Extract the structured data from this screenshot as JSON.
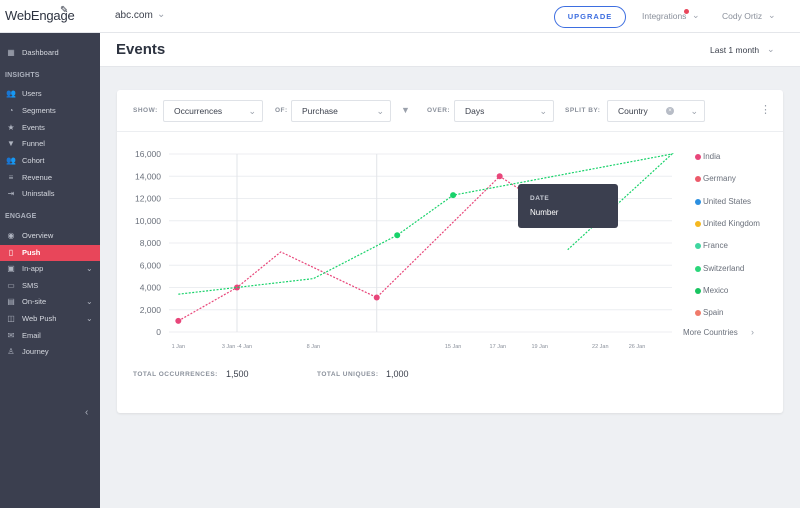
{
  "topbar": {
    "logo": "WebEngage",
    "account": "abc.com",
    "upgrade": "UPGRADE",
    "integrations": "Integrations",
    "user": "Cody Ortiz"
  },
  "sidebar": {
    "items": [
      {
        "label": "Dashboard",
        "icon": "grid-icon"
      },
      {
        "label": "Users",
        "icon": "users-icon"
      },
      {
        "label": "Segments",
        "icon": "pie-icon"
      },
      {
        "label": "Events",
        "icon": "star-icon"
      },
      {
        "label": "Funnel",
        "icon": "funnel-icon"
      },
      {
        "label": "Cohort",
        "icon": "cohort-icon"
      },
      {
        "label": "Revenue",
        "icon": "coins-icon"
      },
      {
        "label": "Uninstalls",
        "icon": "uninstall-icon"
      },
      {
        "label": "Overview",
        "icon": "eye-icon"
      },
      {
        "label": "Push",
        "icon": "phone-icon"
      },
      {
        "label": "In-app",
        "icon": "inapp-icon"
      },
      {
        "label": "SMS",
        "icon": "sms-icon"
      },
      {
        "label": "On-site",
        "icon": "onsite-icon"
      },
      {
        "label": "Web Push",
        "icon": "webpush-icon"
      },
      {
        "label": "Email",
        "icon": "email-icon"
      },
      {
        "label": "Journey",
        "icon": "journey-icon"
      }
    ],
    "sections": {
      "insights": "INSIGHTS",
      "engage": "ENGAGE"
    },
    "active_color": "#e8465a"
  },
  "page": {
    "title": "Events",
    "range": "Last 1 month"
  },
  "filters": {
    "show_label": "SHOW:",
    "show_value": "Occurrences",
    "of_label": "OF:",
    "of_value": "Purchase",
    "over_label": "OVER:",
    "over_value": "Days",
    "split_label": "SPLIT BY:",
    "split_value": "Country"
  },
  "legend": [
    {
      "name": "India",
      "color": "#e8467a"
    },
    {
      "name": "Germany",
      "color": "#ec5a6a"
    },
    {
      "name": "United States",
      "color": "#2b8fe0"
    },
    {
      "name": "United Kingdom",
      "color": "#f5b820"
    },
    {
      "name": "France",
      "color": "#3fd6a0"
    },
    {
      "name": "Switzerland",
      "color": "#2ad67a"
    },
    {
      "name": "Mexico",
      "color": "#18c460"
    },
    {
      "name": "Spain",
      "color": "#f07a6a"
    }
  ],
  "more_countries": "More Countries",
  "tooltip": {
    "label": "DATE",
    "value": "Number"
  },
  "stats": {
    "occ_label": "TOTAL OCCURRENCES:",
    "occ_value": "1,500",
    "uniq_label": "TOTAL UNIQUES:",
    "uniq_value": "1,000"
  },
  "chart_data": {
    "type": "line",
    "ylim": [
      0,
      16000
    ],
    "yticks": [
      "16,000",
      "14,000",
      "12,000",
      "10,000",
      "8,000",
      "6,000",
      "4,000",
      "2,000",
      "0"
    ],
    "xticks": [
      "1 Jan",
      "3 Jan -4 Jan",
      "8 Jan",
      "15 Jan",
      "17 Jan",
      "19 Jan",
      "22 Jan",
      "26 Jan"
    ],
    "grid": true,
    "series": [
      {
        "color": "#e8467a",
        "points": [
          [
            1,
            1000
          ],
          [
            7.3,
            4000
          ],
          [
            12,
            7200
          ],
          [
            22.3,
            3100
          ],
          [
            35.5,
            14000
          ],
          [
            42.3,
            10300
          ]
        ],
        "markers": [
          0,
          1,
          3,
          4,
          5
        ]
      },
      {
        "color": "#18d26a",
        "points": [
          [
            1,
            3400
          ],
          [
            15.5,
            4800
          ],
          [
            24.5,
            8700
          ],
          [
            30.5,
            12300
          ],
          [
            54,
            16000
          ],
          [
            42.8,
            7400
          ]
        ],
        "markers": [
          2,
          3
        ]
      }
    ]
  }
}
